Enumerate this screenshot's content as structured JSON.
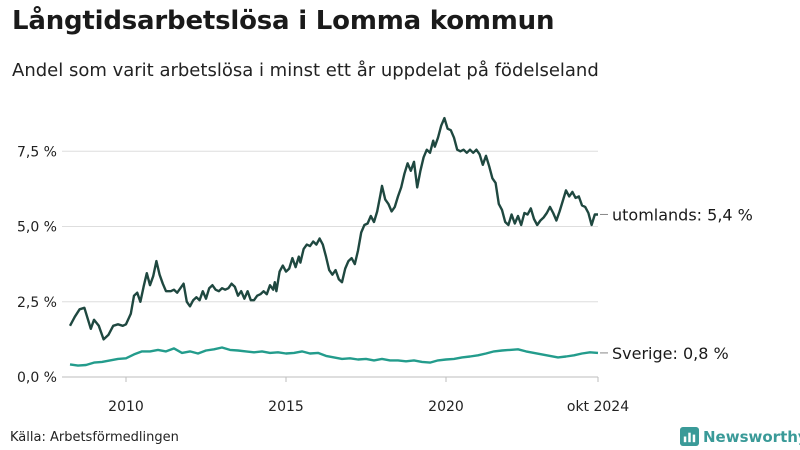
{
  "title": "Långtidsarbetslösa i Lomma kommun",
  "subtitle": "Andel som varit arbetslösa i minst ett år uppdelat på födelseland",
  "source": "Källa: Arbetsförmedlingen",
  "brand": {
    "name": "Newsworthy",
    "color": "#3a9a98"
  },
  "chart_data": {
    "type": "line",
    "x_start": 2008.25,
    "x_end": 2024.75,
    "ylim": [
      0,
      8.8
    ],
    "y_ticks": [
      {
        "value": 0,
        "label": "0,0 %"
      },
      {
        "value": 2.5,
        "label": "2,5 %"
      },
      {
        "value": 5.0,
        "label": "5,0 %"
      },
      {
        "value": 7.5,
        "label": "7,5 %"
      }
    ],
    "x_ticks": [
      {
        "value": 2010,
        "label": "2010"
      },
      {
        "value": 2015,
        "label": "2015"
      },
      {
        "value": 2020,
        "label": "2020"
      },
      {
        "value": 2024.75,
        "label": "okt 2024"
      }
    ],
    "grid": true,
    "series": [
      {
        "name": "utomlands",
        "end_label": "utomlands: 5,4 %",
        "color": "#1f4840",
        "points": [
          [
            2008.25,
            1.7
          ],
          [
            2008.4,
            2.0
          ],
          [
            2008.55,
            2.25
          ],
          [
            2008.7,
            2.3
          ],
          [
            2008.8,
            1.95
          ],
          [
            2008.9,
            1.6
          ],
          [
            2009.0,
            1.9
          ],
          [
            2009.15,
            1.7
          ],
          [
            2009.3,
            1.25
          ],
          [
            2009.45,
            1.4
          ],
          [
            2009.6,
            1.7
          ],
          [
            2009.75,
            1.75
          ],
          [
            2009.9,
            1.7
          ],
          [
            2010.0,
            1.75
          ],
          [
            2010.15,
            2.1
          ],
          [
            2010.25,
            2.7
          ],
          [
            2010.35,
            2.8
          ],
          [
            2010.45,
            2.5
          ],
          [
            2010.55,
            3.0
          ],
          [
            2010.65,
            3.45
          ],
          [
            2010.75,
            3.05
          ],
          [
            2010.85,
            3.35
          ],
          [
            2010.95,
            3.85
          ],
          [
            2011.05,
            3.4
          ],
          [
            2011.15,
            3.1
          ],
          [
            2011.25,
            2.85
          ],
          [
            2011.4,
            2.85
          ],
          [
            2011.5,
            2.9
          ],
          [
            2011.6,
            2.8
          ],
          [
            2011.7,
            2.95
          ],
          [
            2011.8,
            3.1
          ],
          [
            2011.9,
            2.5
          ],
          [
            2012.0,
            2.35
          ],
          [
            2012.1,
            2.55
          ],
          [
            2012.2,
            2.65
          ],
          [
            2012.3,
            2.55
          ],
          [
            2012.4,
            2.85
          ],
          [
            2012.5,
            2.6
          ],
          [
            2012.6,
            2.95
          ],
          [
            2012.7,
            3.05
          ],
          [
            2012.8,
            2.9
          ],
          [
            2012.9,
            2.85
          ],
          [
            2013.0,
            2.95
          ],
          [
            2013.1,
            2.9
          ],
          [
            2013.2,
            2.95
          ],
          [
            2013.3,
            3.1
          ],
          [
            2013.4,
            3.0
          ],
          [
            2013.5,
            2.7
          ],
          [
            2013.6,
            2.85
          ],
          [
            2013.7,
            2.6
          ],
          [
            2013.8,
            2.85
          ],
          [
            2013.9,
            2.55
          ],
          [
            2014.0,
            2.55
          ],
          [
            2014.1,
            2.7
          ],
          [
            2014.2,
            2.75
          ],
          [
            2014.3,
            2.85
          ],
          [
            2014.4,
            2.75
          ],
          [
            2014.5,
            3.05
          ],
          [
            2014.6,
            2.9
          ],
          [
            2014.65,
            3.15
          ],
          [
            2014.7,
            2.85
          ],
          [
            2014.8,
            3.5
          ],
          [
            2014.9,
            3.7
          ],
          [
            2015.0,
            3.5
          ],
          [
            2015.1,
            3.6
          ],
          [
            2015.2,
            3.95
          ],
          [
            2015.3,
            3.65
          ],
          [
            2015.4,
            4.0
          ],
          [
            2015.45,
            3.8
          ],
          [
            2015.55,
            4.25
          ],
          [
            2015.65,
            4.4
          ],
          [
            2015.75,
            4.35
          ],
          [
            2015.85,
            4.5
          ],
          [
            2015.95,
            4.4
          ],
          [
            2016.05,
            4.6
          ],
          [
            2016.15,
            4.4
          ],
          [
            2016.25,
            4.0
          ],
          [
            2016.35,
            3.55
          ],
          [
            2016.45,
            3.4
          ],
          [
            2016.55,
            3.55
          ],
          [
            2016.65,
            3.25
          ],
          [
            2016.75,
            3.15
          ],
          [
            2016.85,
            3.6
          ],
          [
            2016.95,
            3.85
          ],
          [
            2017.05,
            3.95
          ],
          [
            2017.15,
            3.75
          ],
          [
            2017.25,
            4.2
          ],
          [
            2017.35,
            4.8
          ],
          [
            2017.45,
            5.05
          ],
          [
            2017.55,
            5.1
          ],
          [
            2017.65,
            5.35
          ],
          [
            2017.75,
            5.15
          ],
          [
            2017.85,
            5.5
          ],
          [
            2017.95,
            6.05
          ],
          [
            2018.0,
            6.35
          ],
          [
            2018.1,
            5.9
          ],
          [
            2018.2,
            5.75
          ],
          [
            2018.3,
            5.5
          ],
          [
            2018.4,
            5.65
          ],
          [
            2018.5,
            6.0
          ],
          [
            2018.6,
            6.3
          ],
          [
            2018.7,
            6.75
          ],
          [
            2018.8,
            7.1
          ],
          [
            2018.9,
            6.85
          ],
          [
            2019.0,
            7.15
          ],
          [
            2019.1,
            6.3
          ],
          [
            2019.2,
            6.85
          ],
          [
            2019.3,
            7.3
          ],
          [
            2019.4,
            7.55
          ],
          [
            2019.5,
            7.45
          ],
          [
            2019.6,
            7.85
          ],
          [
            2019.65,
            7.65
          ],
          [
            2019.75,
            7.95
          ],
          [
            2019.85,
            8.35
          ],
          [
            2019.95,
            8.6
          ],
          [
            2020.05,
            8.25
          ],
          [
            2020.15,
            8.2
          ],
          [
            2020.25,
            7.95
          ],
          [
            2020.35,
            7.55
          ],
          [
            2020.45,
            7.5
          ],
          [
            2020.55,
            7.55
          ],
          [
            2020.65,
            7.45
          ],
          [
            2020.75,
            7.55
          ],
          [
            2020.85,
            7.45
          ],
          [
            2020.95,
            7.55
          ],
          [
            2021.05,
            7.4
          ],
          [
            2021.15,
            7.05
          ],
          [
            2021.25,
            7.35
          ],
          [
            2021.35,
            7.0
          ],
          [
            2021.45,
            6.6
          ],
          [
            2021.55,
            6.45
          ],
          [
            2021.65,
            5.75
          ],
          [
            2021.75,
            5.55
          ],
          [
            2021.85,
            5.15
          ],
          [
            2021.95,
            5.05
          ],
          [
            2022.05,
            5.4
          ],
          [
            2022.15,
            5.1
          ],
          [
            2022.25,
            5.35
          ],
          [
            2022.35,
            5.05
          ],
          [
            2022.45,
            5.45
          ],
          [
            2022.55,
            5.4
          ],
          [
            2022.65,
            5.6
          ],
          [
            2022.75,
            5.25
          ],
          [
            2022.85,
            5.05
          ],
          [
            2022.95,
            5.2
          ],
          [
            2023.05,
            5.3
          ],
          [
            2023.15,
            5.45
          ],
          [
            2023.25,
            5.65
          ],
          [
            2023.35,
            5.45
          ],
          [
            2023.45,
            5.2
          ],
          [
            2023.55,
            5.5
          ],
          [
            2023.65,
            5.85
          ],
          [
            2023.75,
            6.2
          ],
          [
            2023.85,
            6.0
          ],
          [
            2023.95,
            6.15
          ],
          [
            2024.05,
            5.95
          ],
          [
            2024.15,
            6.0
          ],
          [
            2024.25,
            5.7
          ],
          [
            2024.35,
            5.65
          ],
          [
            2024.45,
            5.45
          ],
          [
            2024.55,
            5.05
          ],
          [
            2024.65,
            5.4
          ],
          [
            2024.75,
            5.4
          ]
        ]
      },
      {
        "name": "Sverige",
        "end_label": "Sverige: 0,8 %",
        "color": "#239c8c",
        "points": [
          [
            2008.25,
            0.42
          ],
          [
            2008.5,
            0.38
          ],
          [
            2008.75,
            0.4
          ],
          [
            2009.0,
            0.48
          ],
          [
            2009.25,
            0.5
          ],
          [
            2009.5,
            0.55
          ],
          [
            2009.75,
            0.6
          ],
          [
            2010.0,
            0.62
          ],
          [
            2010.25,
            0.75
          ],
          [
            2010.5,
            0.85
          ],
          [
            2010.75,
            0.85
          ],
          [
            2011.0,
            0.9
          ],
          [
            2011.25,
            0.85
          ],
          [
            2011.5,
            0.95
          ],
          [
            2011.75,
            0.8
          ],
          [
            2012.0,
            0.85
          ],
          [
            2012.25,
            0.78
          ],
          [
            2012.5,
            0.88
          ],
          [
            2012.75,
            0.92
          ],
          [
            2013.0,
            0.98
          ],
          [
            2013.25,
            0.9
          ],
          [
            2013.5,
            0.88
          ],
          [
            2013.75,
            0.85
          ],
          [
            2014.0,
            0.82
          ],
          [
            2014.25,
            0.85
          ],
          [
            2014.5,
            0.8
          ],
          [
            2014.75,
            0.82
          ],
          [
            2015.0,
            0.78
          ],
          [
            2015.25,
            0.8
          ],
          [
            2015.5,
            0.85
          ],
          [
            2015.75,
            0.78
          ],
          [
            2016.0,
            0.8
          ],
          [
            2016.25,
            0.7
          ],
          [
            2016.5,
            0.65
          ],
          [
            2016.75,
            0.6
          ],
          [
            2017.0,
            0.62
          ],
          [
            2017.25,
            0.58
          ],
          [
            2017.5,
            0.6
          ],
          [
            2017.75,
            0.55
          ],
          [
            2018.0,
            0.6
          ],
          [
            2018.25,
            0.55
          ],
          [
            2018.5,
            0.55
          ],
          [
            2018.75,
            0.52
          ],
          [
            2019.0,
            0.55
          ],
          [
            2019.25,
            0.5
          ],
          [
            2019.5,
            0.48
          ],
          [
            2019.75,
            0.55
          ],
          [
            2020.0,
            0.58
          ],
          [
            2020.25,
            0.6
          ],
          [
            2020.5,
            0.65
          ],
          [
            2020.75,
            0.68
          ],
          [
            2021.0,
            0.72
          ],
          [
            2021.25,
            0.78
          ],
          [
            2021.5,
            0.85
          ],
          [
            2021.75,
            0.88
          ],
          [
            2022.0,
            0.9
          ],
          [
            2022.25,
            0.92
          ],
          [
            2022.5,
            0.85
          ],
          [
            2022.75,
            0.8
          ],
          [
            2023.0,
            0.75
          ],
          [
            2023.25,
            0.7
          ],
          [
            2023.5,
            0.65
          ],
          [
            2023.75,
            0.68
          ],
          [
            2024.0,
            0.72
          ],
          [
            2024.25,
            0.78
          ],
          [
            2024.5,
            0.82
          ],
          [
            2024.75,
            0.8
          ]
        ]
      }
    ]
  }
}
